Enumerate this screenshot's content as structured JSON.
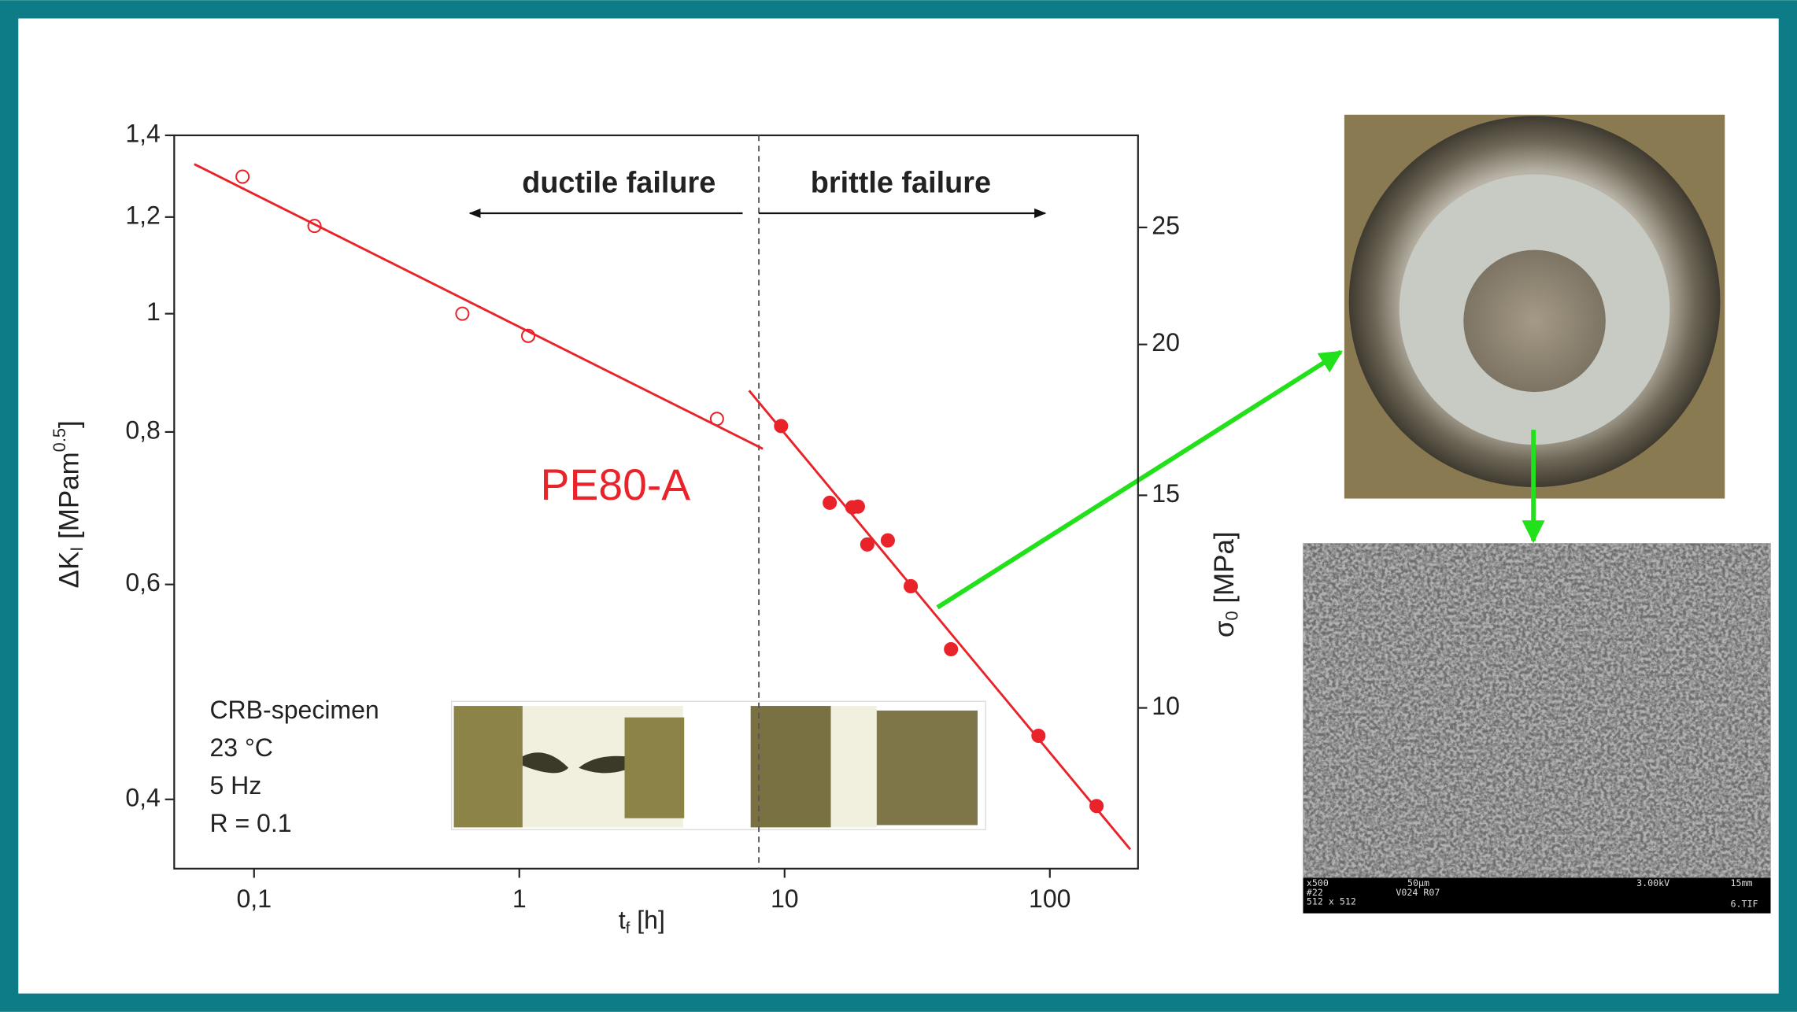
{
  "chart_data": {
    "type": "scatter",
    "x_label": {
      "main": "t",
      "sub": "f",
      "end": " [h]"
    },
    "y_label": {
      "main": "ΔK",
      "sub": "I",
      "mid": " [MPam",
      "sup": "0.5",
      "end": "]"
    },
    "y2_label": {
      "main": "σ",
      "sub": "0",
      "end": " [MPa]"
    },
    "x_scale": "log",
    "y_scale": "log",
    "y2_scale": "log",
    "xlim": [
      0.05,
      215
    ],
    "ylim": [
      0.351,
      1.4
    ],
    "y2lim": [
      7.36,
      29.8
    ],
    "xticks": [
      {
        "value": 0.1,
        "label": "0,1"
      },
      1,
      10,
      100
    ],
    "yticks": [
      {
        "value": 0.4,
        "label": "0,4"
      },
      {
        "value": 0.6,
        "label": "0,6"
      },
      {
        "value": 0.8,
        "label": "0,8"
      },
      1,
      {
        "value": 1.2,
        "label": "1,2"
      },
      {
        "value": 1.4,
        "label": "1,4"
      }
    ],
    "y2ticks": [
      10,
      15,
      20,
      25
    ],
    "series": [
      {
        "marker": "open",
        "color": "#e8232a",
        "x": [
          0.0905,
          0.169,
          0.61,
          1.08,
          5.56
        ],
        "values": [
          1.295,
          1.18,
          1.0,
          0.959,
          0.82
        ]
      },
      {
        "marker": "filled",
        "color": "#e8232a",
        "x": [
          9.7,
          14.8,
          18.0,
          18.9,
          20.5,
          24.5,
          29.9,
          42.4,
          90.6,
          150
        ],
        "values": [
          0.809,
          0.7,
          0.694,
          0.695,
          0.647,
          0.652,
          0.598,
          0.531,
          0.451,
          0.395
        ]
      }
    ],
    "fit_lines": [
      {
        "color": "#e8232a",
        "x": [
          0.0595,
          8.28
        ],
        "values": [
          1.326,
          0.775
        ]
      },
      {
        "color": "#e8232a",
        "x": [
          7.35,
          201
        ],
        "values": [
          0.865,
          0.364
        ]
      }
    ],
    "divider_x": 8,
    "annotations": {
      "ductile": "ductile failure",
      "brittle": "brittle failure",
      "material": "PE80-A"
    },
    "conditions": [
      "CRB-specimen",
      "23 °C",
      "5 Hz",
      "R = 0.1"
    ],
    "sem_caption": [
      "x500",
      "50µm",
      "3.00kV",
      "15mm",
      "#22",
      "V024 R07",
      "512 x 512",
      "6.TIF"
    ]
  }
}
